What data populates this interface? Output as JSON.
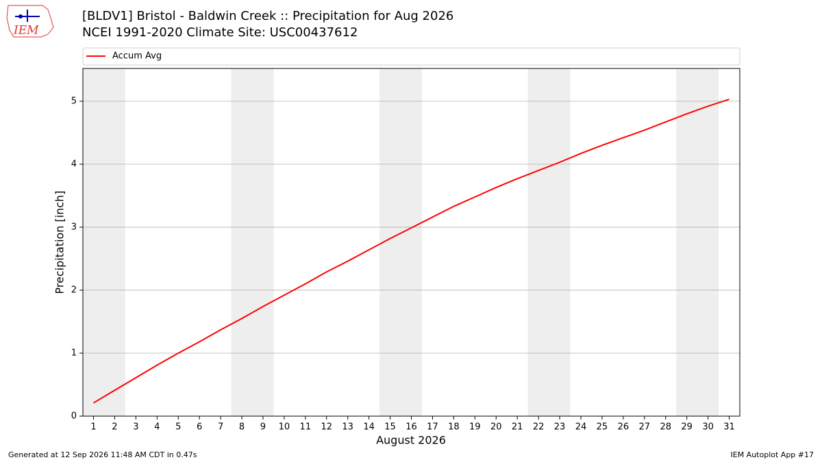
{
  "chart_data": {
    "type": "line",
    "title": "[BLDV1] Bristol - Baldwin Creek :: Precipitation for Aug 2026",
    "subtitle": "NCEI 1991-2020 Climate Site: USC00437612",
    "x_label": "August 2026",
    "y_label": "Precipitation [inch]",
    "x": [
      1,
      2,
      3,
      4,
      5,
      6,
      7,
      8,
      9,
      10,
      11,
      12,
      13,
      14,
      15,
      16,
      17,
      18,
      19,
      20,
      21,
      22,
      23,
      24,
      25,
      26,
      27,
      28,
      29,
      30,
      31
    ],
    "series": [
      {
        "name": "Accum Avg",
        "color": "#ff0000",
        "values": [
          0.21,
          0.41,
          0.61,
          0.81,
          1.0,
          1.18,
          1.37,
          1.55,
          1.74,
          1.92,
          2.1,
          2.29,
          2.46,
          2.64,
          2.82,
          2.99,
          3.16,
          3.33,
          3.48,
          3.63,
          3.77,
          3.9,
          4.03,
          4.17,
          4.3,
          4.42,
          4.54,
          4.67,
          4.8,
          4.92,
          5.03
        ]
      }
    ],
    "weekend_days": [
      1,
      2,
      8,
      9,
      15,
      16,
      22,
      23,
      29,
      30
    ],
    "xlim": [
      0.5,
      31.5
    ],
    "ylim": [
      0,
      5.52
    ],
    "xticks": [
      1,
      2,
      3,
      4,
      5,
      6,
      7,
      8,
      9,
      10,
      11,
      12,
      13,
      14,
      15,
      16,
      17,
      18,
      19,
      20,
      21,
      22,
      23,
      24,
      25,
      26,
      27,
      28,
      29,
      30,
      31
    ],
    "yticks": [
      0,
      1,
      2,
      3,
      4,
      5
    ],
    "grid": "y",
    "legend": "top"
  },
  "logo_text": "IEM",
  "footer_left": "Generated at 12 Sep 2026 11:48 AM CDT in 0.47s",
  "footer_right": "IEM Autoplot App #17"
}
